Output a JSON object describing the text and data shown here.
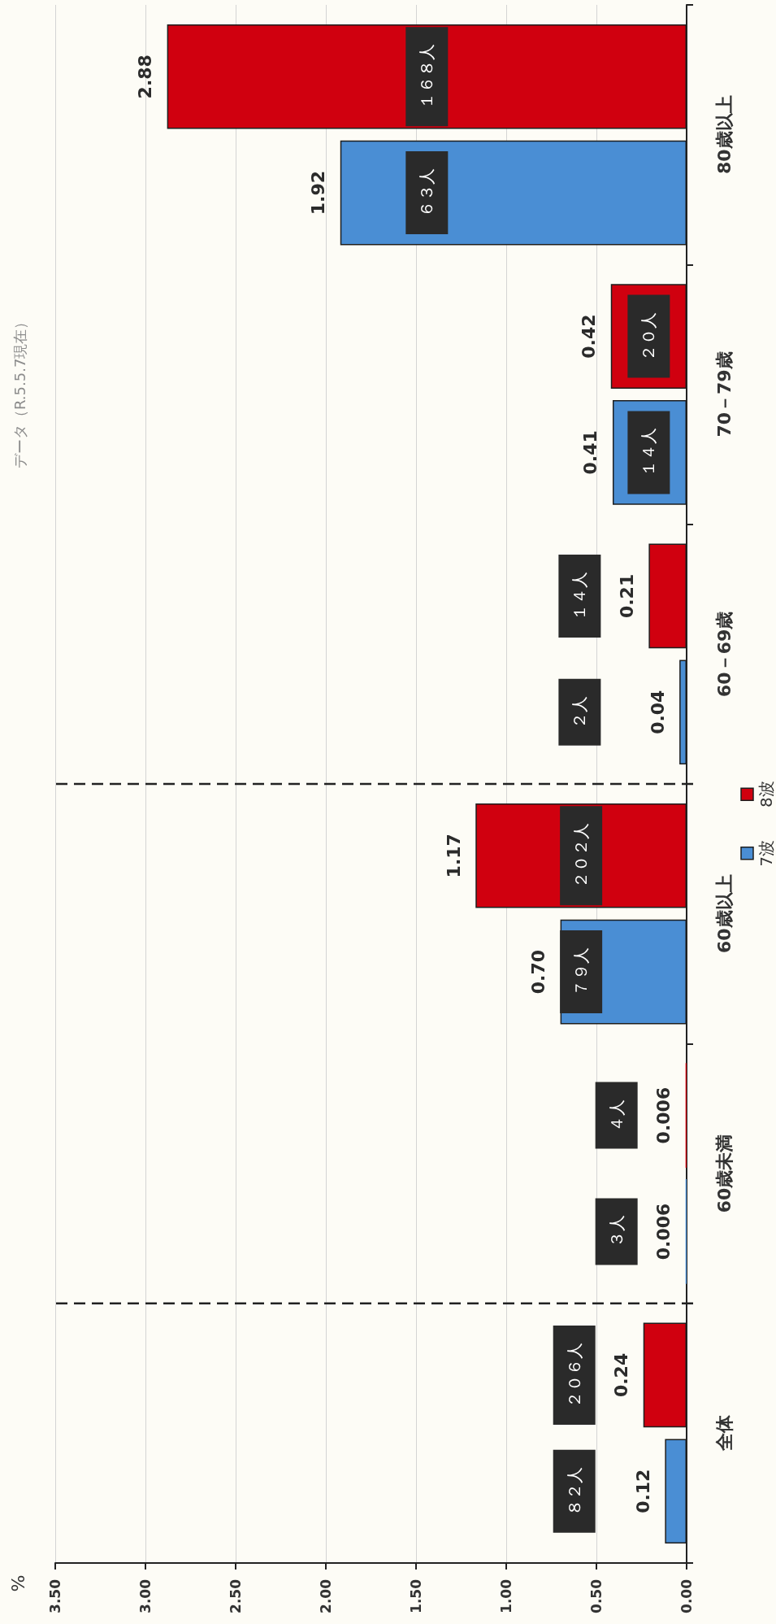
{
  "chart_data": {
    "type": "bar",
    "orientation": "horizontal",
    "subtitle": "データ（R.5.5.7現在）",
    "categories": [
      "80歳以上",
      "70－79歳",
      "60－69歳",
      "60歳以上",
      "60歳未満",
      "全体"
    ],
    "series": [
      {
        "name": "7波",
        "color": "#4a8ed4",
        "values": [
          1.92,
          0.41,
          0.04,
          0.7,
          0.006,
          0.12
        ],
        "value_labels": [
          "1.92",
          "0.41",
          "0.04",
          "0.70",
          "0.006",
          "0.12"
        ]
      },
      {
        "name": "8波",
        "color": "#d0000f",
        "values": [
          2.88,
          0.42,
          0.21,
          1.17,
          0.006,
          0.24
        ],
        "value_labels": [
          "2.88",
          "0.42",
          "0.21",
          "1.17",
          "0.006",
          "0.24"
        ]
      }
    ],
    "xlim": [
      3.5,
      0
    ],
    "xticks": [
      {
        "value": 3.5,
        "label": "3.50"
      },
      {
        "value": 3,
        "label": "3.00"
      },
      {
        "value": 2.5,
        "label": "2.50"
      },
      {
        "value": 2,
        "label": "2.00"
      },
      {
        "value": 1.5,
        "label": "1.50"
      },
      {
        "value": 1,
        "label": "1.00"
      },
      {
        "value": 0.5,
        "label": "0.50"
      },
      {
        "value": 0,
        "label": "0.00"
      }
    ],
    "grid": "x",
    "legend": "right",
    "annotations": [
      "６３人",
      "１６８人",
      "１４人",
      "２０人",
      "２人",
      "１４人",
      "７９人",
      "２０２人",
      "３人",
      "４人",
      "８２人",
      "２０６人",
      "%"
    ]
  }
}
